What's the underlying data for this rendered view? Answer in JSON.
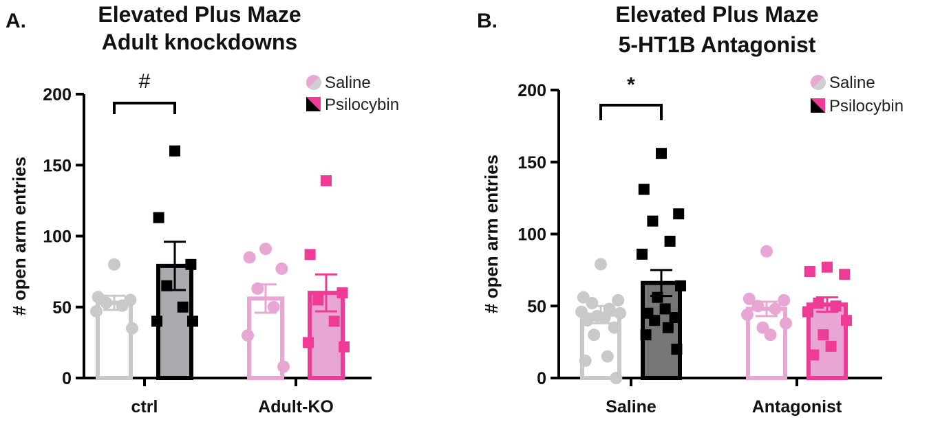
{
  "chart_data": [
    {
      "type": "bar",
      "panel_label": "A.",
      "title_lines": [
        "Elevated Plus Maze",
        "Adult knockdowns"
      ],
      "ylabel": "# open arm entries",
      "ylim": [
        0,
        200
      ],
      "yticks": [
        0,
        50,
        100,
        150,
        200
      ],
      "categories": [
        "ctrl",
        "Adult-KO"
      ],
      "legend": [
        {
          "label": "Saline",
          "icon": "half-circle-icon"
        },
        {
          "label": "Psilocybin",
          "icon": "half-square-icon"
        }
      ],
      "legend_position": "top-right",
      "significance": {
        "label": "#",
        "between": [
          "ctrl Saline",
          "ctrl Psilocybin"
        ]
      },
      "bars": [
        {
          "category": "ctrl",
          "series": "Saline",
          "mean": 53,
          "sem": 5,
          "fill": "#ffffff",
          "stroke": "#c9c9c9",
          "point_color": "#c9c9c9",
          "marker": "circle",
          "points": [
            80,
            57,
            55,
            53,
            51,
            47,
            35
          ]
        },
        {
          "category": "ctrl",
          "series": "Psilocybin",
          "mean": 79,
          "sem": 17,
          "fill": "#a9aaad",
          "stroke": "#000000",
          "point_color": "#000000",
          "marker": "square",
          "points": [
            160,
            113,
            80,
            65,
            50,
            40,
            40
          ]
        },
        {
          "category": "Adult-KO",
          "series": "Saline",
          "mean": 56,
          "sem": 10,
          "fill": "#ffffff",
          "stroke": "#e8a6d4",
          "point_color": "#e8a6d4",
          "marker": "circle",
          "points": [
            91,
            85,
            77,
            63,
            50,
            30,
            8
          ]
        },
        {
          "category": "Adult-KO",
          "series": "Psilocybin",
          "mean": 60,
          "sem": 13,
          "fill": "#e8a6d4",
          "stroke": "#ee3c96",
          "point_color": "#ee3c96",
          "marker": "square",
          "points": [
            139,
            87,
            60,
            55,
            40,
            25,
            22
          ]
        }
      ]
    },
    {
      "type": "bar",
      "panel_label": "B.",
      "title_lines": [
        "Elevated Plus Maze",
        "5-HT1B Antagonist"
      ],
      "ylabel": "# open arm entries",
      "ylim": [
        0,
        200
      ],
      "yticks": [
        0,
        50,
        100,
        150,
        200
      ],
      "categories": [
        "Saline",
        "Antagonist"
      ],
      "legend": [
        {
          "label": "Saline",
          "icon": "half-circle-icon"
        },
        {
          "label": "Psilocybin",
          "icon": "half-square-icon"
        }
      ],
      "legend_position": "top-right",
      "significance": {
        "label": "*",
        "between": [
          "Saline Saline",
          "Saline Psilocybin"
        ]
      },
      "bars": [
        {
          "category": "Saline",
          "series": "Saline",
          "mean": 44,
          "sem": 6,
          "fill": "#ffffff",
          "stroke": "#c9c9c9",
          "point_color": "#c9c9c9",
          "marker": "circle",
          "points": [
            79,
            56,
            54,
            52,
            48,
            46,
            45,
            43,
            42,
            40,
            35,
            30,
            15,
            12,
            0
          ]
        },
        {
          "category": "Saline",
          "series": "Psilocybin",
          "mean": 66,
          "sem": 9,
          "fill": "#767676",
          "stroke": "#000000",
          "point_color": "#000000",
          "marker": "square",
          "points": [
            156,
            131,
            114,
            109,
            95,
            86,
            64,
            56,
            48,
            45,
            42,
            40,
            35,
            30,
            20
          ]
        },
        {
          "category": "Antagonist",
          "series": "Saline",
          "mean": 48,
          "sem": 5,
          "fill": "#ffffff",
          "stroke": "#e8a6d4",
          "point_color": "#e8a6d4",
          "marker": "circle",
          "points": [
            88,
            55,
            54,
            50,
            48,
            44,
            38,
            35,
            30
          ]
        },
        {
          "category": "Antagonist",
          "series": "Psilocybin",
          "mean": 51,
          "sem": 5,
          "fill": "#e8a6d4",
          "stroke": "#ee3c96",
          "point_color": "#ee3c96",
          "marker": "square",
          "points": [
            77,
            74,
            72,
            52,
            50,
            46,
            40,
            30,
            22,
            16
          ]
        }
      ]
    }
  ]
}
